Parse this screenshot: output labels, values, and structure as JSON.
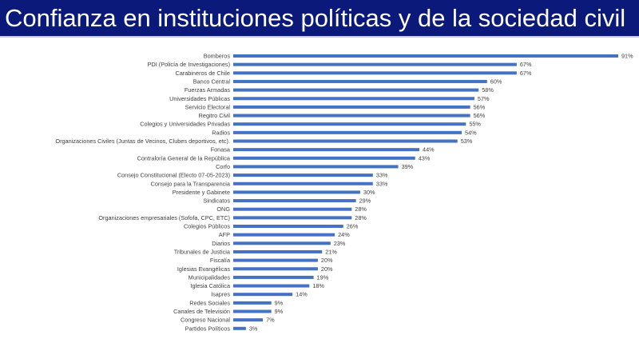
{
  "title": "Confianza en instituciones políticas y de la sociedad civil",
  "colors": {
    "header_bg": "#0b1a7a",
    "header_text": "#ffffff",
    "bar": "#4472c4",
    "label": "#404040"
  },
  "chart_data": {
    "type": "bar",
    "orientation": "horizontal",
    "title": "Confianza en instituciones políticas y de la sociedad civil",
    "xlim": [
      0,
      91
    ],
    "grid": false,
    "legend": "none",
    "value_suffix": "%",
    "categories": [
      "Bomberos",
      "PDI (Policía de Investigaciones)",
      "Carabineros de Chile",
      "Banco Central",
      "Fuerzas Armadas",
      "Universidades Públicas",
      "Servicio Electoral",
      "Regitro Civil",
      "Colegios y Universidades Privadas",
      "Radios",
      "Organizaciones Civiles (Juntas de Vecinos, Clubes deportivos, etc).",
      "Fonasa",
      "Contraloría General de la República",
      "Corfo",
      "Consejo Constitucional (Electo 07-05-2023)",
      "Consejo para la Transparencia",
      "Presidente y Gabinete",
      "Sindicatos",
      "ONG",
      "Organizaciones empresariales (Sofofa, CPC, ETC)",
      "Colegios Públicos",
      "AFP",
      "Diarios",
      "Tribunales de Justicia",
      "Fiscalía",
      "Iglesias Evangélicas",
      "Municipalidades",
      "Iglesia Católica",
      "Isapres",
      "Redes Sociales",
      "Canales de Televisión",
      "Congreso Nacional",
      "Partidos Políticos"
    ],
    "values": [
      91,
      67,
      67,
      60,
      58,
      57,
      56,
      56,
      55,
      54,
      53,
      44,
      43,
      39,
      33,
      33,
      30,
      29,
      28,
      28,
      26,
      24,
      23,
      21,
      20,
      20,
      19,
      18,
      14,
      9,
      9,
      7,
      3
    ]
  }
}
